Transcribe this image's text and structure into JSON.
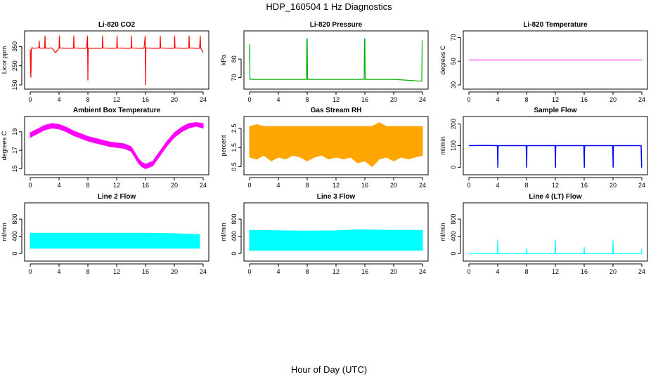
{
  "figure": {
    "title": "HDP_160504  1 Hz Diagnostics",
    "xlabel": "Hour of Day (UTC)"
  },
  "chart_data": [
    {
      "type": "line",
      "title": "Li-820 CO2",
      "ylabel": "Licor ppm",
      "color": "#ff0000",
      "xlim": [
        0,
        24
      ],
      "ylim": [
        150,
        410
      ],
      "yticks": [
        150,
        250,
        350
      ],
      "xticks": [
        0,
        4,
        8,
        12,
        16,
        20,
        24
      ],
      "line_width": 1.2,
      "series": [
        {
          "x": [
            0,
            0.05,
            0.1,
            0.15,
            0.2,
            0.25,
            0.3,
            0.5,
            1,
            1.2,
            1.25,
            1.3,
            2,
            2.05,
            2.1,
            2.5,
            3,
            3.5,
            4,
            4.05,
            4.1,
            5,
            6,
            6.05,
            6.1,
            7,
            7.8,
            7.95,
            8,
            8.05,
            8.2,
            9,
            10,
            10.05,
            10.1,
            11,
            12,
            12.05,
            12.1,
            13,
            14,
            14.05,
            14.1,
            15,
            15.8,
            15.95,
            16,
            16.05,
            16.1,
            17,
            18,
            18.05,
            18.1,
            19,
            19.8,
            20,
            20.05,
            20.1,
            21,
            22,
            22.05,
            22.1,
            23,
            23.5,
            23.6,
            23.65,
            24
          ],
          "y": [
            335,
            230,
            190,
            330,
            340,
            345,
            343,
            342,
            343,
            345,
            380,
            343,
            342,
            405,
            343,
            342,
            343,
            318,
            342,
            405,
            343,
            342,
            342,
            405,
            343,
            342,
            342,
            405,
            175,
            343,
            342,
            342,
            342,
            405,
            343,
            342,
            342,
            405,
            343,
            342,
            342,
            405,
            343,
            342,
            342,
            405,
            150,
            345,
            343,
            342,
            342,
            405,
            343,
            342,
            342,
            342,
            405,
            343,
            342,
            342,
            405,
            343,
            342,
            342,
            405,
            343,
            320
          ]
        }
      ]
    },
    {
      "type": "line",
      "title": "Li-820 Pressure",
      "ylabel": "kPa",
      "color": "#00b000",
      "xlim": [
        0,
        24
      ],
      "ylim": [
        66,
        93
      ],
      "yticks": [
        70,
        80
      ],
      "xticks": [
        0,
        4,
        8,
        12,
        16,
        20,
        24
      ],
      "line_width": 1.2,
      "series": [
        {
          "x": [
            0,
            0.02,
            0.05,
            0.1,
            0.2,
            1,
            3,
            6,
            7.9,
            7.95,
            8,
            8.05,
            8.1,
            10,
            12,
            15.9,
            15.95,
            16,
            16.05,
            16.1,
            18,
            20,
            22,
            23.9,
            23.95,
            24
          ],
          "y": [
            80,
            88,
            70,
            69,
            69,
            69,
            69,
            69,
            69,
            91,
            91,
            69,
            69,
            69,
            69,
            69,
            91,
            91,
            69,
            69,
            69,
            69,
            68.5,
            68,
            90,
            90
          ]
        }
      ]
    },
    {
      "type": "line",
      "title": "Li-820 Temperature",
      "ylabel": "degrees C",
      "color": "#ff00ff",
      "xlim": [
        0,
        24
      ],
      "ylim": [
        30,
        72
      ],
      "yticks": [
        30,
        50,
        70
      ],
      "xticks": [
        0,
        4,
        8,
        12,
        16,
        20,
        24
      ],
      "line_width": 1,
      "series": [
        {
          "x": [
            0,
            24
          ],
          "y": [
            51,
            51
          ]
        }
      ]
    },
    {
      "type": "area",
      "title": "Ambient Box Temperature",
      "ylabel": "degrees C",
      "color": "#ff00ff",
      "xlim": [
        0,
        24
      ],
      "ylim": [
        14.8,
        20.2
      ],
      "yticks": [
        15,
        17,
        19
      ],
      "xticks": [
        0,
        4,
        8,
        12,
        16,
        20,
        24
      ],
      "series": [
        {
          "x": [
            0,
            1,
            2,
            3,
            4,
            5,
            6,
            7,
            8,
            9,
            10,
            11,
            12,
            13,
            14,
            15,
            15.5,
            16,
            17,
            18,
            19,
            20,
            21,
            22,
            23,
            24
          ],
          "low": [
            18.4,
            18.8,
            19.2,
            19.4,
            19.3,
            19.0,
            18.6,
            18.3,
            18.0,
            17.8,
            17.6,
            17.4,
            17.3,
            17.2,
            16.9,
            15.6,
            15.2,
            15.0,
            15.3,
            16.4,
            17.5,
            18.4,
            19.0,
            19.4,
            19.6,
            19.4
          ],
          "high": [
            18.9,
            19.3,
            19.7,
            19.9,
            19.8,
            19.5,
            19.1,
            18.8,
            18.5,
            18.3,
            18.1,
            17.9,
            17.8,
            17.7,
            17.4,
            16.1,
            15.7,
            15.5,
            15.8,
            16.9,
            18.0,
            18.9,
            19.5,
            19.9,
            20.0,
            19.9
          ]
        }
      ]
    },
    {
      "type": "area",
      "title": "Gas Stream RH",
      "ylabel": "percent",
      "color": "#ffa500",
      "xlim": [
        0,
        24
      ],
      "ylim": [
        0.3,
        2.9
      ],
      "yticks": [
        0.5,
        1.5,
        2.5
      ],
      "xticks": [
        0,
        4,
        8,
        12,
        16,
        20,
        24
      ],
      "series": [
        {
          "x": [
            0,
            1,
            2,
            3,
            4,
            5,
            6,
            7,
            8,
            9,
            10,
            11,
            12,
            13,
            14,
            15,
            16,
            17,
            18,
            19,
            20,
            21,
            22,
            23,
            24
          ],
          "low": [
            1.0,
            0.9,
            1.1,
            0.8,
            1.0,
            0.9,
            1.1,
            1.0,
            0.8,
            1.0,
            1.1,
            0.9,
            1.0,
            0.9,
            1.0,
            0.7,
            0.8,
            0.5,
            0.9,
            1.0,
            0.8,
            1.0,
            0.9,
            1.0,
            1.1
          ],
          "high": [
            2.6,
            2.7,
            2.6,
            2.6,
            2.6,
            2.6,
            2.6,
            2.6,
            2.6,
            2.6,
            2.6,
            2.6,
            2.6,
            2.6,
            2.6,
            2.6,
            2.6,
            2.6,
            2.8,
            2.6,
            2.6,
            2.6,
            2.6,
            2.6,
            2.6
          ]
        }
      ]
    },
    {
      "type": "line",
      "title": "Sample Flow",
      "ylabel": "ml/min",
      "color": "#0000ff",
      "xlim": [
        0,
        24
      ],
      "ylim": [
        -15,
        215
      ],
      "yticks": [
        0,
        100,
        200
      ],
      "xticks": [
        0,
        4,
        8,
        12,
        16,
        20,
        24
      ],
      "line_width": 1.5,
      "series": [
        {
          "x": [
            0,
            2,
            3.95,
            4,
            4.02,
            4.05,
            4.1,
            7.95,
            8,
            8.02,
            8.05,
            8.1,
            11.95,
            12,
            12.02,
            12.05,
            12.1,
            15.95,
            16,
            16.02,
            16.05,
            16.1,
            19.95,
            20,
            20.02,
            20.05,
            20.1,
            23.9,
            23.95,
            23.97,
            24
          ],
          "y": [
            100,
            101,
            100,
            30,
            0,
            95,
            100,
            100,
            40,
            0,
            95,
            100,
            100,
            40,
            0,
            95,
            100,
            100,
            30,
            0,
            95,
            100,
            100,
            40,
            0,
            95,
            100,
            100,
            30,
            0,
            0
          ]
        }
      ]
    },
    {
      "type": "area",
      "title": "Line 2 Flow",
      "ylabel": "ml/min",
      "color": "#00ffff",
      "xlim": [
        0,
        24
      ],
      "ylim": [
        -80,
        1080
      ],
      "yticks": [
        0,
        400,
        800
      ],
      "xticks": [
        0,
        4,
        8,
        12,
        16,
        20,
        24
      ],
      "series": [
        {
          "x": [
            0,
            4,
            8,
            12,
            16,
            20,
            22,
            23.5
          ],
          "low": [
            120,
            120,
            120,
            120,
            120,
            120,
            120,
            120
          ],
          "high": [
            470,
            470,
            470,
            470,
            470,
            460,
            450,
            440
          ]
        }
      ]
    },
    {
      "type": "area",
      "title": "Line 3 Flow",
      "ylabel": "ml/min",
      "color": "#00ffff",
      "xlim": [
        0,
        24
      ],
      "ylim": [
        -80,
        1080
      ],
      "yticks": [
        0,
        400,
        800
      ],
      "xticks": [
        0,
        4,
        8,
        12,
        16,
        20,
        24
      ],
      "series": [
        {
          "x": [
            0,
            4,
            8,
            12,
            15,
            16,
            20,
            24
          ],
          "low": [
            70,
            70,
            70,
            70,
            70,
            70,
            70,
            70
          ],
          "high": [
            540,
            530,
            520,
            530,
            550,
            550,
            540,
            540
          ]
        }
      ]
    },
    {
      "type": "line",
      "title": "Line 4 (LT) Flow",
      "ylabel": "ml/min",
      "color": "#00ffff",
      "xlim": [
        0,
        24
      ],
      "ylim": [
        -80,
        1080
      ],
      "yticks": [
        0,
        400,
        800
      ],
      "xticks": [
        0,
        4,
        8,
        12,
        16,
        20,
        24
      ],
      "line_width": 1.2,
      "series": [
        {
          "x": [
            0,
            3.95,
            4,
            4.05,
            7.95,
            8,
            8.05,
            11.95,
            12,
            12.05,
            15.95,
            16,
            16.05,
            19.95,
            20,
            20.05,
            23.95,
            24
          ],
          "y": [
            0,
            0,
            300,
            0,
            0,
            110,
            0,
            0,
            300,
            0,
            0,
            140,
            0,
            0,
            300,
            0,
            0,
            110
          ]
        }
      ]
    }
  ]
}
